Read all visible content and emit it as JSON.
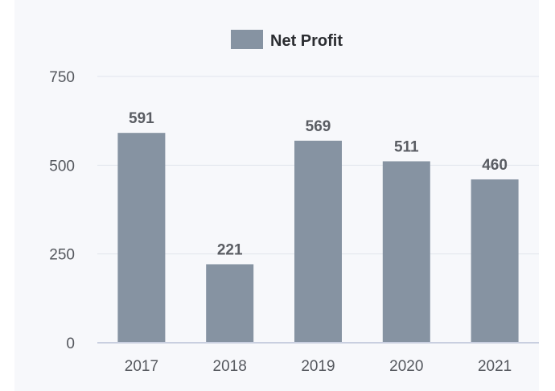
{
  "chart_data": {
    "type": "bar",
    "categories": [
      "2017",
      "2018",
      "2019",
      "2020",
      "2021"
    ],
    "series": [
      {
        "name": "Net Profit",
        "values": [
          591,
          221,
          569,
          511,
          460
        ],
        "color": "#8693a2"
      }
    ],
    "ylim": [
      0,
      750
    ],
    "yticks": [
      "0",
      "250",
      "500",
      "750"
    ],
    "grid": true,
    "legend_position": "top-center",
    "data_labels": true
  },
  "colors": {
    "background": "#f7f8fb",
    "grid": "#e2e5ec",
    "axis": "#c9cfe0"
  }
}
